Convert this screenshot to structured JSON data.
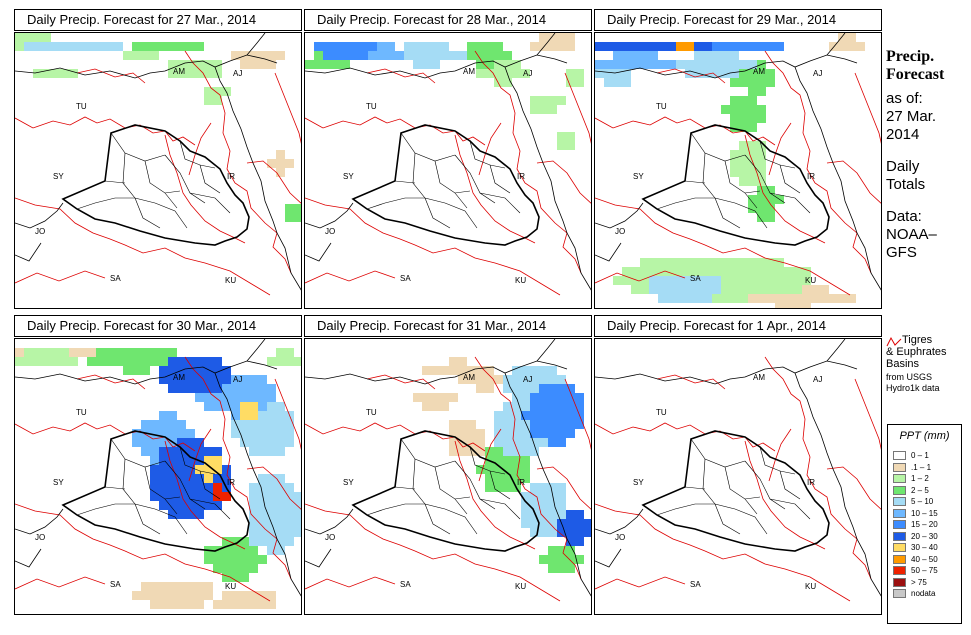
{
  "panels": [
    {
      "title": "Daily Precip. Forecast for  27 Mar., 2014"
    },
    {
      "title": "Daily Precip. Forecast for  28 Mar., 2014"
    },
    {
      "title": "Daily Precip. Forecast for  29 Mar., 2014"
    },
    {
      "title": "Daily Precip. Forecast for  30 Mar., 2014"
    },
    {
      "title": "Daily Precip. Forecast for  31 Mar., 2014"
    },
    {
      "title": "Daily Precip. Forecast for  1 Apr., 2014"
    }
  ],
  "country_labels": [
    "AM",
    "AJ",
    "TU",
    "SY",
    "IR",
    "JO",
    "SA",
    "KU"
  ],
  "sidebar": {
    "title_line1": "Precip.",
    "title_line2": "Forecast",
    "asof": "as of:",
    "date1": "27 Mar.",
    "date2": "2014",
    "daily1": "Daily",
    "daily2": "Totals",
    "data1": "Data:",
    "data2": "NOAA–",
    "data3": "GFS"
  },
  "basins": {
    "line1": "Tigres",
    "line2": "& Euphrates",
    "line3": "Basins",
    "line4": "from USGS",
    "line5": "Hydro1k data",
    "line_color": "#dd0000"
  },
  "legend": {
    "title": "PPT (mm)",
    "items": [
      {
        "label": "0 – 1",
        "color": "#ffffff"
      },
      {
        "label": ".1 – 1",
        "color": "#f0d9b5"
      },
      {
        "label": "1 – 2",
        "color": "#b7f5a6"
      },
      {
        "label": "2 – 5",
        "color": "#6fe66f"
      },
      {
        "label": "5 – 10",
        "color": "#a5dcf5"
      },
      {
        "label": "10 – 15",
        "color": "#6eb8ff"
      },
      {
        "label": "15 – 20",
        "color": "#3c8cff"
      },
      {
        "label": "20 – 30",
        "color": "#1e5be6"
      },
      {
        "label": "30 – 40",
        "color": "#ffdc64"
      },
      {
        "label": "40 – 50",
        "color": "#ff9a00"
      },
      {
        "label": "50 – 75",
        "color": "#ee2200"
      },
      {
        "label": "> 75",
        "color": "#9b1010"
      },
      {
        "label": "nodata",
        "color": "#c8c8c8"
      }
    ]
  }
}
